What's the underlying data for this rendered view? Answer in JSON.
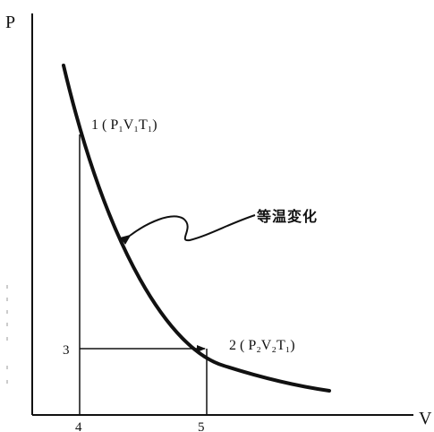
{
  "axes": {
    "y_label": "P",
    "x_label": "V"
  },
  "points": {
    "state1": "1 ( P₁V₁T₁)",
    "state2": "2 ( P₂V₂T₁)"
  },
  "ticks": {
    "x_left": "4",
    "x_right": "5",
    "y_level": "3"
  },
  "annotation": {
    "label": "等温変化"
  }
}
